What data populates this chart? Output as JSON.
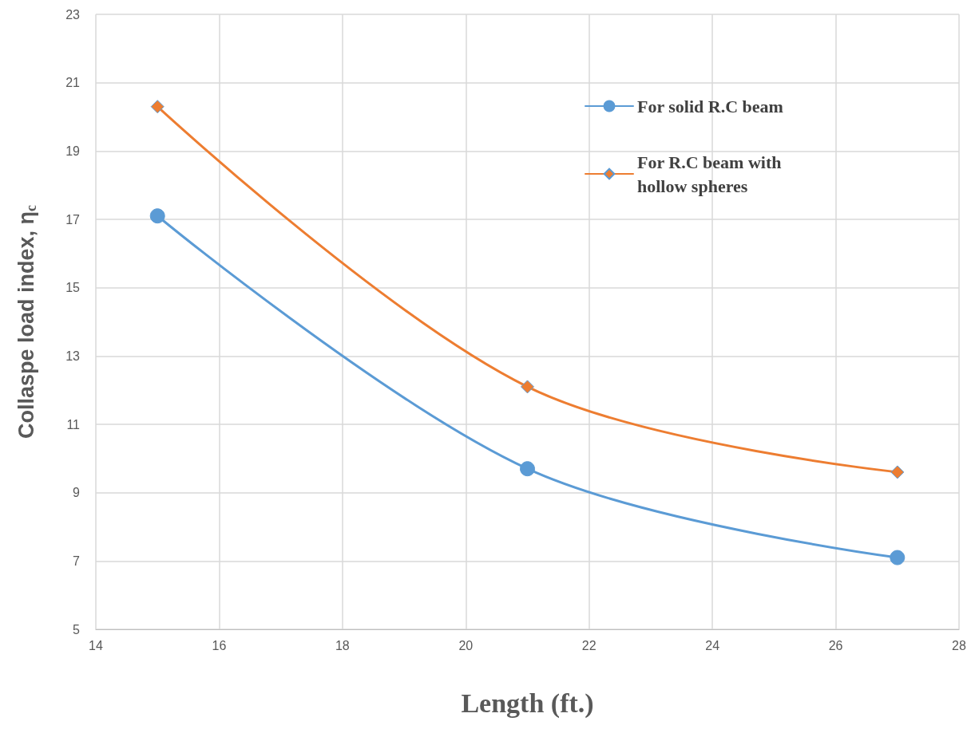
{
  "chart_data": {
    "type": "line",
    "xlabel": "Length (ft.)",
    "ylabel": "Collaspe load index, η$_{c}$",
    "x": [
      15,
      21,
      27
    ],
    "series": [
      {
        "name": "For solid R.C beam",
        "color": "#5b9bd5",
        "marker": "circle",
        "values": [
          17.1,
          9.7,
          7.1
        ]
      },
      {
        "name": "For R.C beam with hollow spheres",
        "color": "#ed7d31",
        "marker": "diamond",
        "values": [
          20.3,
          12.1,
          9.6
        ]
      }
    ],
    "xlim": [
      14,
      28
    ],
    "xticks": [
      14,
      16,
      18,
      20,
      22,
      24,
      26,
      28
    ],
    "ylim": [
      5,
      23
    ],
    "yticks": [
      5,
      7,
      9,
      11,
      13,
      15,
      17,
      19,
      21,
      23
    ],
    "grid": true,
    "legend": "top right"
  }
}
